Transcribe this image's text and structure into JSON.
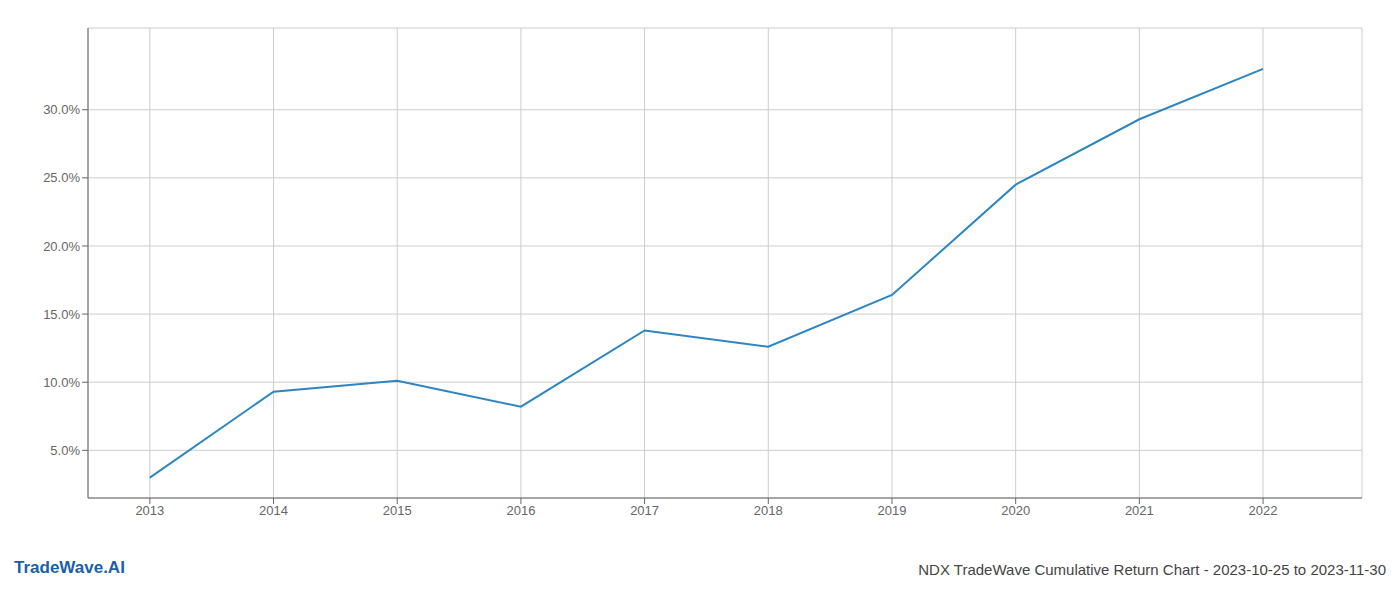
{
  "chart_data": {
    "type": "line",
    "title": "NDX TradeWave Cumulative Return Chart - 2023-10-25 to 2023-11-30",
    "annotations": [
      {
        "text": "TradeWave.AI",
        "color": "#1a5fa8"
      }
    ],
    "x": [
      2013,
      2014,
      2015,
      2016,
      2017,
      2018,
      2019,
      2020,
      2021,
      2022
    ],
    "series": [
      {
        "values": [
          3.0,
          9.3,
          10.1,
          8.2,
          13.8,
          12.6,
          16.4,
          24.5,
          29.3,
          33.0
        ],
        "color": "#2e86c1"
      }
    ],
    "xlim": [
      2012.5,
      2022.8
    ],
    "xticks": [
      2013,
      2014,
      2015,
      2016,
      2017,
      2018,
      2019,
      2020,
      2021,
      2022
    ],
    "ylim": [
      1.5,
      36.0
    ],
    "yticks": [
      {
        "value": 5.0,
        "label": "5.0%"
      },
      {
        "value": 10.0,
        "label": "10.0%"
      },
      {
        "value": 15.0,
        "label": "15.0%"
      },
      {
        "value": 20.0,
        "label": "20.0%"
      },
      {
        "value": 25.0,
        "label": "25.0%"
      },
      {
        "value": 30.0,
        "label": "30.0%"
      }
    ],
    "grid": true
  }
}
